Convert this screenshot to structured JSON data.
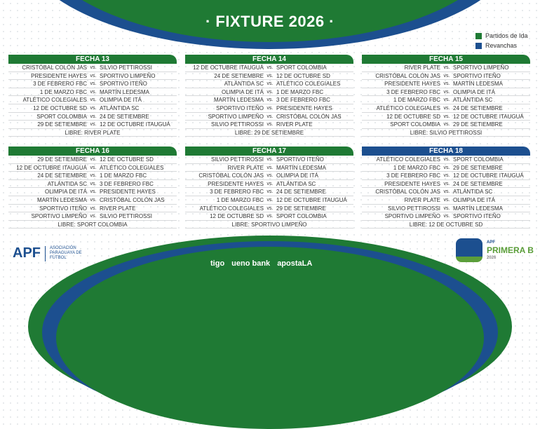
{
  "title": "· FIXTURE 2026 ·",
  "legend": [
    {
      "label": "Partidos de Ida",
      "color": "#1f7a34"
    },
    {
      "label": "Revanchas",
      "color": "#1c4f8f"
    }
  ],
  "fechas": [
    {
      "name": "FECHA 13",
      "color": "#1f7a34",
      "matches": [
        [
          "CRISTÓBAL COLÓN JAS",
          "SILVIO PETTIROSSI"
        ],
        [
          "PRESIDENTE HAYES",
          "SPORTIVO LIMPEÑO"
        ],
        [
          "3 DE FEBRERO FBC",
          "SPORTIVO ITEÑO"
        ],
        [
          "1 DE MARZO FBC",
          "MARTÍN LEDESMA"
        ],
        [
          "ATLÉTICO COLEGIALES",
          "OLIMPIA DE ITÁ"
        ],
        [
          "12 DE OCTUBRE SD",
          "ATLÁNTIDA SC"
        ],
        [
          "SPORT COLOMBIA",
          "24 DE SETIEMBRE"
        ],
        [
          "29 DE SETIEMBRE",
          "12 DE OCTUBRE ITAUGUÁ"
        ]
      ],
      "libre": "LIBRE: RIVER PLATE"
    },
    {
      "name": "FECHA 14",
      "color": "#1f7a34",
      "matches": [
        [
          "12 DE OCTUBRE ITAUGUÁ",
          "SPORT COLOMBIA"
        ],
        [
          "24 DE SETIEMBRE",
          "12 DE OCTUBRE SD"
        ],
        [
          "ATLÁNTIDA SC",
          "ATLÉTICO COLEGIALES"
        ],
        [
          "OLIMPIA DE ITÁ",
          "1 DE MARZO FBC"
        ],
        [
          "MARTÍN LEDESMA",
          "3 DE FEBRERO FBC"
        ],
        [
          "SPORTIVO ITEÑO",
          "PRESIDENTE HAYES"
        ],
        [
          "SPORTIVO LIMPEÑO",
          "CRISTÓBAL COLÓN JAS"
        ],
        [
          "SILVIO PETTIROSSI",
          "RIVER PLATE"
        ]
      ],
      "libre": "LIBRE: 29 DE SETIEMBRE"
    },
    {
      "name": "FECHA 15",
      "color": "#1f7a34",
      "matches": [
        [
          "RIVER PLATE",
          "SPORTIVO LIMPEÑO"
        ],
        [
          "CRISTÓBAL COLÓN JAS",
          "SPORTIVO ITEÑO"
        ],
        [
          "PRESIDENTE HAYES",
          "MARTÍN LEDESMA"
        ],
        [
          "3 DE FEBRERO FBC",
          "OLIMPIA DE ITÁ"
        ],
        [
          "1 DE MARZO FBC",
          "ATLÁNTIDA SC"
        ],
        [
          "ATLÉTICO COLEGIALES",
          "24 DE SETIEMBRE"
        ],
        [
          "12 DE OCTUBRE SD",
          "12 DE OCTUBRE ITAUGUÁ"
        ],
        [
          "SPORT COLOMBIA",
          "29 DE SETIEMBRE"
        ]
      ],
      "libre": "LIBRE: SILVIO PETTIROSSI"
    },
    {
      "name": "FECHA 16",
      "color": "#1f7a34",
      "matches": [
        [
          "29 DE SETIEMBRE",
          "12 DE OCTUBRE SD"
        ],
        [
          "12 DE OCTUBRE ITAUGUÁ",
          "ATLÉTICO COLEGIALES"
        ],
        [
          "24 DE SETIEMBRE",
          "1 DE MARZO FBC"
        ],
        [
          "ATLÁNTIDA SC",
          "3 DE FEBRERO FBC"
        ],
        [
          "OLIMPIA DE ITÁ",
          "PRESIDENTE HAYES"
        ],
        [
          "MARTÍN LEDESMA",
          "CRISTÓBAL COLÓN JAS"
        ],
        [
          "SPORTIVO ITEÑO",
          "RIVER PLATE"
        ],
        [
          "SPORTIVO LIMPEÑO",
          "SILVIO PETTIROSSI"
        ]
      ],
      "libre": "LIBRE: SPORT COLOMBIA"
    },
    {
      "name": "FECHA 17",
      "color": "#1f7a34",
      "matches": [
        [
          "SILVIO PETTIROSSI",
          "SPORTIVO ITEÑO"
        ],
        [
          "RIVER PLATE",
          "MARTÍN LEDESMA"
        ],
        [
          "CRISTÓBAL COLÓN JAS",
          "OLIMPIA DE ITÁ"
        ],
        [
          "PRESIDENTE HAYES",
          "ATLÁNTIDA SC"
        ],
        [
          "3 DE FEBRERO FBC",
          "24 DE SETIEMBRE"
        ],
        [
          "1 DE MARZO FBC",
          "12 DE OCTUBRE ITAUGUÁ"
        ],
        [
          "ATLÉTICO COLEGIALES",
          "29 DE SETIEMBRE"
        ],
        [
          "12 DE OCTUBRE SD",
          "SPORT COLOMBIA"
        ]
      ],
      "libre": "LIBRE: SPORTIVO LIMPEÑO"
    },
    {
      "name": "FECHA 18",
      "color": "#1c4f8f",
      "matches": [
        [
          "ATLÉTICO COLEGIALES",
          "SPORT COLOMBIA"
        ],
        [
          "1 DE MARZO FBC",
          "29 DE SETIEMBRE"
        ],
        [
          "3 DE FEBRERO FBC",
          "12 DE OCTUBRE ITAUGUÁ"
        ],
        [
          "PRESIDENTE HAYES",
          "24 DE SETIEMBRE"
        ],
        [
          "CRISTÓBAL COLÓN JAS",
          "ATLÁNTIDA SC"
        ],
        [
          "RIVER PLATE",
          "OLIMPIA DE ITÁ"
        ],
        [
          "SILVIO PETTIROSSI",
          "MARTÍN LEDESMA"
        ],
        [
          "SPORTIVO LIMPEÑO",
          "SPORTIVO ITEÑO"
        ]
      ],
      "libre": "LIBRE: 12 DE OCTUBRE SD"
    }
  ],
  "vs": "vs.",
  "footer": {
    "apf": "APF",
    "apf_full": "ASOCIACIÓN PARAGUAYA DE FÚTBOL",
    "sponsors": [
      "tigo",
      "ueno bank",
      "apostaLA"
    ],
    "pb_top": "APF",
    "pb_name": "PRIMERA B",
    "pb_year": "2026"
  }
}
